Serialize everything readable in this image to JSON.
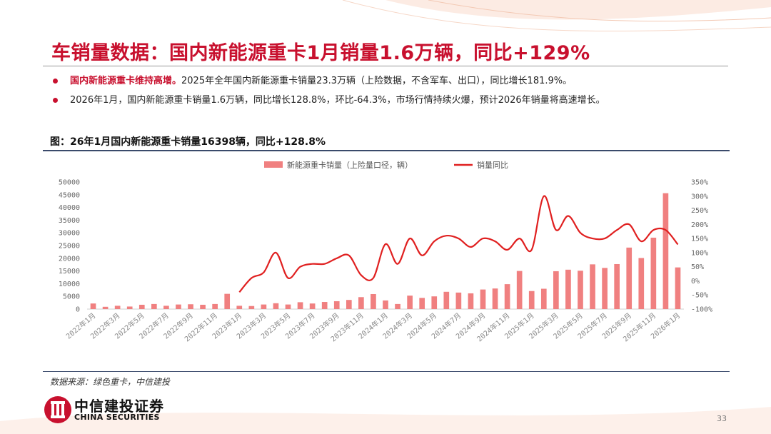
{
  "title": "车销量数据：国内新能源重卡1月销量1.6万辆，同比+129%",
  "bullets": [
    {
      "highlight": "国内新能源重卡维持高增。",
      "text": "2025年全年国内新能源重卡销量23.3万辆（上险数据，不含军车、出口），同比增长181.9%。"
    },
    {
      "highlight": "",
      "text": "2026年1月，国内新能源重卡销量1.6万辆，同比增长128.8%，环比-64.3%，市场行情持续火爆，预计2026年销量将高速增长。"
    }
  ],
  "figure_title": "图：26年1月国内新能源重卡销量16398辆，同比+128.8%",
  "source": "数据来源：绿色重卡，中信建投",
  "logo": {
    "cn": "中信建投证券",
    "en": "CHINA SECURITIES"
  },
  "page_number": "33",
  "colors": {
    "brand_red": "#c8102e",
    "bar": "#f08080",
    "line": "#e02020"
  },
  "chart_data": {
    "type": "bar+line",
    "legend": {
      "bar": "新能源重卡销量（上险量口径，辆）",
      "line": "销量同比"
    },
    "x_tick_labels": [
      "2022年1月",
      "2022年3月",
      "2022年5月",
      "2022年7月",
      "2022年9月",
      "2022年11月",
      "2023年1月",
      "2023年3月",
      "2023年5月",
      "2023年7月",
      "2023年9月",
      "2023年11月",
      "2024年1月",
      "2024年3月",
      "2024年5月",
      "2024年7月",
      "2024年9月",
      "2024年11月",
      "2025年1月",
      "2025年3月",
      "2025年5月",
      "2025年7月",
      "2025年9月",
      "2025年11月",
      "2026年1月"
    ],
    "months": [
      "2022-01",
      "2022-02",
      "2022-03",
      "2022-04",
      "2022-05",
      "2022-06",
      "2022-07",
      "2022-08",
      "2022-09",
      "2022-10",
      "2022-11",
      "2022-12",
      "2023-01",
      "2023-02",
      "2023-03",
      "2023-04",
      "2023-05",
      "2023-06",
      "2023-07",
      "2023-08",
      "2023-09",
      "2023-10",
      "2023-11",
      "2023-12",
      "2024-01",
      "2024-02",
      "2024-03",
      "2024-04",
      "2024-05",
      "2024-06",
      "2024-07",
      "2024-08",
      "2024-09",
      "2024-10",
      "2024-11",
      "2024-12",
      "2025-01",
      "2025-02",
      "2025-03",
      "2025-04",
      "2025-05",
      "2025-06",
      "2025-07",
      "2025-08",
      "2025-09",
      "2025-10",
      "2025-11",
      "2025-12",
      "2026-01"
    ],
    "sales": [
      2200,
      900,
      1300,
      1000,
      1700,
      2000,
      1300,
      1800,
      1900,
      1700,
      2000,
      6000,
      1300,
      1200,
      1800,
      2300,
      1800,
      2700,
      2200,
      2800,
      3100,
      3600,
      4700,
      5900,
      3400,
      2000,
      5300,
      4400,
      5000,
      6800,
      6500,
      6200,
      7700,
      8100,
      9800,
      15000,
      7100,
      8000,
      14900,
      15500,
      15100,
      17600,
      16200,
      17700,
      24200,
      20100,
      28100,
      45600,
      16398
    ],
    "yoy": [
      null,
      null,
      null,
      null,
      null,
      null,
      null,
      null,
      null,
      null,
      null,
      null,
      -40,
      10,
      30,
      100,
      10,
      50,
      60,
      60,
      80,
      90,
      20,
      10,
      130,
      60,
      150,
      90,
      140,
      160,
      150,
      120,
      150,
      140,
      110,
      150,
      110,
      300,
      180,
      230,
      170,
      150,
      150,
      180,
      200,
      140,
      180,
      180,
      128.8
    ],
    "y_left": {
      "min": 0,
      "max": 50000,
      "step": 5000
    },
    "y_right": {
      "min": -100,
      "max": 350,
      "step": 50,
      "unit": "%"
    }
  }
}
